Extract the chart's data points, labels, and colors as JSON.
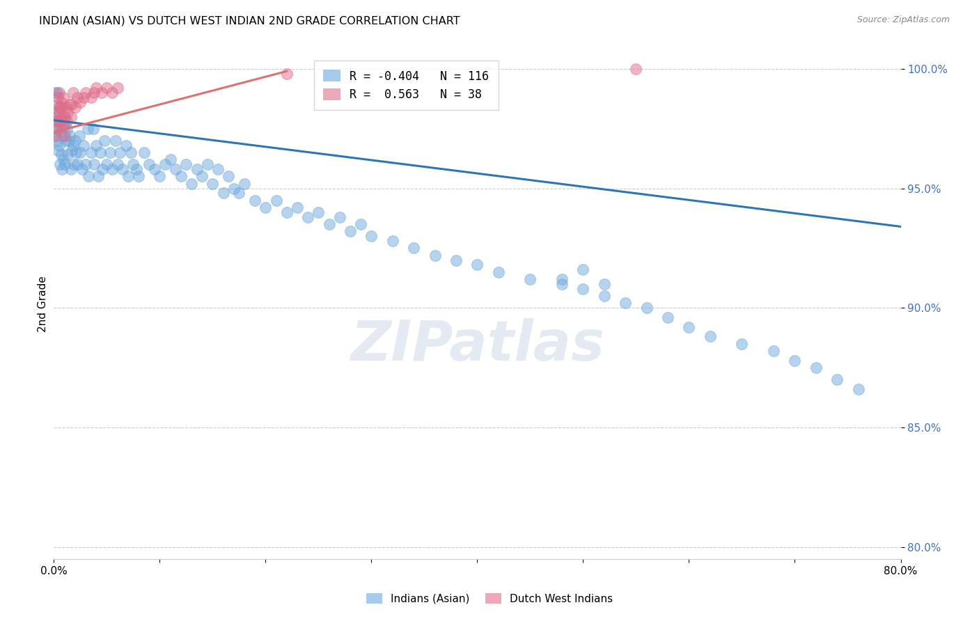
{
  "title": "INDIAN (ASIAN) VS DUTCH WEST INDIAN 2ND GRADE CORRELATION CHART",
  "source": "Source: ZipAtlas.com",
  "ylabel": "2nd Grade",
  "xlim": [
    0.0,
    0.8
  ],
  "ylim": [
    0.795,
    1.008
  ],
  "yticks": [
    0.8,
    0.85,
    0.9,
    0.95,
    1.0
  ],
  "ytick_labels": [
    "80.0%",
    "85.0%",
    "90.0%",
    "95.0%",
    "100.0%"
  ],
  "xticks": [
    0.0,
    0.1,
    0.2,
    0.3,
    0.4,
    0.5,
    0.6,
    0.7,
    0.8
  ],
  "xtick_labels": [
    "0.0%",
    "",
    "",
    "",
    "",
    "",
    "",
    "",
    "80.0%"
  ],
  "blue_R": -0.404,
  "blue_N": 116,
  "pink_R": 0.563,
  "pink_N": 38,
  "blue_color": "#6fa8dc",
  "pink_color": "#e06c8a",
  "blue_line_color": "#2e75b6",
  "pink_line_color": "#e07070",
  "watermark": "ZIPatlas",
  "legend_label_blue": "Indians (Asian)",
  "legend_label_pink": "Dutch West Indians",
  "blue_scatter_x": [
    0.001,
    0.001,
    0.002,
    0.002,
    0.003,
    0.003,
    0.004,
    0.004,
    0.005,
    0.005,
    0.006,
    0.006,
    0.007,
    0.007,
    0.008,
    0.008,
    0.009,
    0.009,
    0.01,
    0.01,
    0.011,
    0.012,
    0.013,
    0.014,
    0.015,
    0.016,
    0.017,
    0.018,
    0.019,
    0.02,
    0.021,
    0.022,
    0.024,
    0.025,
    0.027,
    0.028,
    0.03,
    0.032,
    0.033,
    0.035,
    0.037,
    0.038,
    0.04,
    0.042,
    0.044,
    0.046,
    0.048,
    0.05,
    0.053,
    0.055,
    0.058,
    0.06,
    0.062,
    0.065,
    0.068,
    0.07,
    0.073,
    0.075,
    0.078,
    0.08,
    0.085,
    0.09,
    0.095,
    0.1,
    0.105,
    0.11,
    0.115,
    0.12,
    0.125,
    0.13,
    0.135,
    0.14,
    0.145,
    0.15,
    0.155,
    0.16,
    0.165,
    0.17,
    0.175,
    0.18,
    0.19,
    0.2,
    0.21,
    0.22,
    0.23,
    0.24,
    0.25,
    0.26,
    0.27,
    0.28,
    0.29,
    0.3,
    0.32,
    0.34,
    0.36,
    0.38,
    0.4,
    0.42,
    0.45,
    0.48,
    0.5,
    0.52,
    0.54,
    0.56,
    0.58,
    0.6,
    0.62,
    0.65,
    0.68,
    0.7,
    0.72,
    0.74,
    0.76,
    0.48,
    0.5,
    0.52
  ],
  "blue_scatter_y": [
    0.99,
    0.972,
    0.982,
    0.975,
    0.99,
    0.97,
    0.978,
    0.966,
    0.984,
    0.968,
    0.976,
    0.96,
    0.974,
    0.964,
    0.972,
    0.958,
    0.98,
    0.962,
    0.976,
    0.96,
    0.97,
    0.975,
    0.964,
    0.97,
    0.972,
    0.958,
    0.966,
    0.968,
    0.96,
    0.97,
    0.965,
    0.96,
    0.972,
    0.965,
    0.958,
    0.968,
    0.96,
    0.975,
    0.955,
    0.965,
    0.975,
    0.96,
    0.968,
    0.955,
    0.965,
    0.958,
    0.97,
    0.96,
    0.965,
    0.958,
    0.97,
    0.96,
    0.965,
    0.958,
    0.968,
    0.955,
    0.965,
    0.96,
    0.958,
    0.955,
    0.965,
    0.96,
    0.958,
    0.955,
    0.96,
    0.962,
    0.958,
    0.955,
    0.96,
    0.952,
    0.958,
    0.955,
    0.96,
    0.952,
    0.958,
    0.948,
    0.955,
    0.95,
    0.948,
    0.952,
    0.945,
    0.942,
    0.945,
    0.94,
    0.942,
    0.938,
    0.94,
    0.935,
    0.938,
    0.932,
    0.935,
    0.93,
    0.928,
    0.925,
    0.922,
    0.92,
    0.918,
    0.915,
    0.912,
    0.91,
    0.908,
    0.905,
    0.902,
    0.9,
    0.896,
    0.892,
    0.888,
    0.885,
    0.882,
    0.878,
    0.875,
    0.87,
    0.866,
    0.912,
    0.916,
    0.91
  ],
  "pink_scatter_x": [
    0.001,
    0.002,
    0.003,
    0.003,
    0.004,
    0.004,
    0.005,
    0.005,
    0.006,
    0.006,
    0.007,
    0.007,
    0.008,
    0.008,
    0.009,
    0.01,
    0.01,
    0.011,
    0.012,
    0.013,
    0.015,
    0.016,
    0.017,
    0.018,
    0.02,
    0.022,
    0.025,
    0.028,
    0.03,
    0.035,
    0.038,
    0.04,
    0.045,
    0.05,
    0.055,
    0.06,
    0.22,
    0.55
  ],
  "pink_scatter_y": [
    0.972,
    0.98,
    0.985,
    0.978,
    0.988,
    0.975,
    0.982,
    0.99,
    0.984,
    0.978,
    0.986,
    0.98,
    0.984,
    0.976,
    0.988,
    0.98,
    0.972,
    0.984,
    0.978,
    0.982,
    0.985,
    0.98,
    0.985,
    0.99,
    0.984,
    0.988,
    0.986,
    0.988,
    0.99,
    0.988,
    0.99,
    0.992,
    0.99,
    0.992,
    0.99,
    0.992,
    0.998,
    1.0
  ],
  "blue_trend_x": [
    0.0,
    0.8
  ],
  "blue_trend_y": [
    0.9785,
    0.934
  ],
  "pink_trend_x": [
    0.0,
    0.22
  ],
  "pink_trend_y": [
    0.9735,
    0.999
  ]
}
